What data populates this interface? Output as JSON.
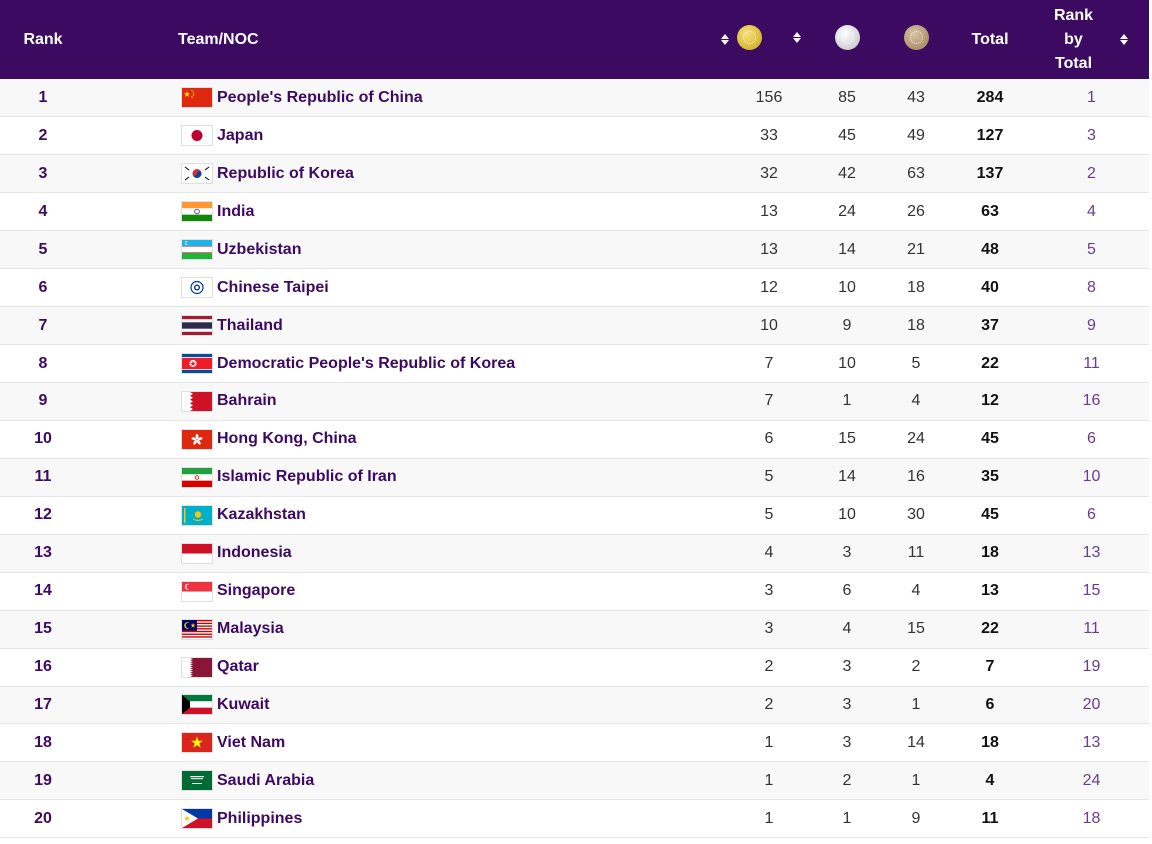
{
  "header": {
    "rank": "Rank",
    "team": "Team/NOC",
    "gold_icon": "gold-medal-icon",
    "silver_icon": "silver-medal-icon",
    "bronze_icon": "bronze-medal-icon",
    "total": "Total",
    "rank_by_total_line1": "Rank",
    "rank_by_total_line2": "by",
    "rank_by_total_line3": "Total"
  },
  "colors": {
    "header_bg": "#3d0a62",
    "team_link": "#3d0a62",
    "rank_by_total": "#6a3b92"
  },
  "rows": [
    {
      "rank": "1",
      "team": "People's Republic of China",
      "flag": "china-flag-icon",
      "gold": "156",
      "silver": "85",
      "bronze": "43",
      "total": "284",
      "rank_by_total": "1"
    },
    {
      "rank": "2",
      "team": "Japan",
      "flag": "japan-flag-icon",
      "gold": "33",
      "silver": "45",
      "bronze": "49",
      "total": "127",
      "rank_by_total": "3"
    },
    {
      "rank": "3",
      "team": "Republic of Korea",
      "flag": "korea-flag-icon",
      "gold": "32",
      "silver": "42",
      "bronze": "63",
      "total": "137",
      "rank_by_total": "2"
    },
    {
      "rank": "4",
      "team": "India",
      "flag": "india-flag-icon",
      "gold": "13",
      "silver": "24",
      "bronze": "26",
      "total": "63",
      "rank_by_total": "4"
    },
    {
      "rank": "5",
      "team": "Uzbekistan",
      "flag": "uzbekistan-flag-icon",
      "gold": "13",
      "silver": "14",
      "bronze": "21",
      "total": "48",
      "rank_by_total": "5"
    },
    {
      "rank": "6",
      "team": "Chinese Taipei",
      "flag": "chinese-taipei-flag-icon",
      "gold": "12",
      "silver": "10",
      "bronze": "18",
      "total": "40",
      "rank_by_total": "8"
    },
    {
      "rank": "7",
      "team": "Thailand",
      "flag": "thailand-flag-icon",
      "gold": "10",
      "silver": "9",
      "bronze": "18",
      "total": "37",
      "rank_by_total": "9"
    },
    {
      "rank": "8",
      "team": "Democratic People's Republic of Korea",
      "flag": "dprk-flag-icon",
      "gold": "7",
      "silver": "10",
      "bronze": "5",
      "total": "22",
      "rank_by_total": "11"
    },
    {
      "rank": "9",
      "team": "Bahrain",
      "flag": "bahrain-flag-icon",
      "gold": "7",
      "silver": "1",
      "bronze": "4",
      "total": "12",
      "rank_by_total": "16"
    },
    {
      "rank": "10",
      "team": "Hong Kong, China",
      "flag": "hong-kong-flag-icon",
      "gold": "6",
      "silver": "15",
      "bronze": "24",
      "total": "45",
      "rank_by_total": "6"
    },
    {
      "rank": "11",
      "team": "Islamic Republic of Iran",
      "flag": "iran-flag-icon",
      "gold": "5",
      "silver": "14",
      "bronze": "16",
      "total": "35",
      "rank_by_total": "10"
    },
    {
      "rank": "12",
      "team": "Kazakhstan",
      "flag": "kazakhstan-flag-icon",
      "gold": "5",
      "silver": "10",
      "bronze": "30",
      "total": "45",
      "rank_by_total": "6"
    },
    {
      "rank": "13",
      "team": "Indonesia",
      "flag": "indonesia-flag-icon",
      "gold": "4",
      "silver": "3",
      "bronze": "11",
      "total": "18",
      "rank_by_total": "13"
    },
    {
      "rank": "14",
      "team": "Singapore",
      "flag": "singapore-flag-icon",
      "gold": "3",
      "silver": "6",
      "bronze": "4",
      "total": "13",
      "rank_by_total": "15"
    },
    {
      "rank": "15",
      "team": "Malaysia",
      "flag": "malaysia-flag-icon",
      "gold": "3",
      "silver": "4",
      "bronze": "15",
      "total": "22",
      "rank_by_total": "11"
    },
    {
      "rank": "16",
      "team": "Qatar",
      "flag": "qatar-flag-icon",
      "gold": "2",
      "silver": "3",
      "bronze": "2",
      "total": "7",
      "rank_by_total": "19"
    },
    {
      "rank": "17",
      "team": "Kuwait",
      "flag": "kuwait-flag-icon",
      "gold": "2",
      "silver": "3",
      "bronze": "1",
      "total": "6",
      "rank_by_total": "20"
    },
    {
      "rank": "18",
      "team": "Viet Nam",
      "flag": "viet-nam-flag-icon",
      "gold": "1",
      "silver": "3",
      "bronze": "14",
      "total": "18",
      "rank_by_total": "13"
    },
    {
      "rank": "19",
      "team": "Saudi Arabia",
      "flag": "saudi-arabia-flag-icon",
      "gold": "1",
      "silver": "2",
      "bronze": "1",
      "total": "4",
      "rank_by_total": "24"
    },
    {
      "rank": "20",
      "team": "Philippines",
      "flag": "philippines-flag-icon",
      "gold": "1",
      "silver": "1",
      "bronze": "9",
      "total": "11",
      "rank_by_total": "18"
    }
  ]
}
